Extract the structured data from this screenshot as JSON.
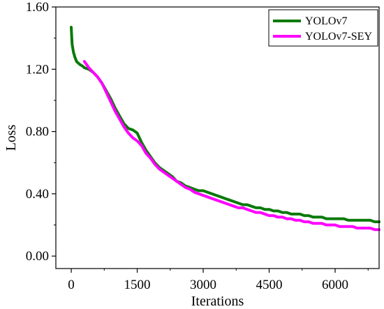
{
  "chart_data": {
    "type": "line",
    "xlabel": "Iterations",
    "ylabel": "Loss",
    "xlim": [
      -350,
      7000
    ],
    "ylim": [
      -0.08,
      1.6
    ],
    "xticks": [
      0,
      1500,
      3000,
      4500,
      6000
    ],
    "xtick_labels": [
      "0",
      "1500",
      "3000",
      "4500",
      "6000"
    ],
    "yticks": [
      0.0,
      0.4,
      0.8,
      1.2,
      1.6
    ],
    "ytick_labels": [
      "0.00",
      "0.40",
      "0.80",
      "1.20",
      "1.60"
    ],
    "legend_position": "top-right",
    "grid": false,
    "series": [
      {
        "name": "YOLOv7",
        "color": "#0a7a0a",
        "x": [
          0,
          20,
          50,
          80,
          120,
          160,
          200,
          260,
          300,
          400,
          500,
          600,
          700,
          800,
          900,
          1000,
          1100,
          1200,
          1300,
          1400,
          1500,
          1600,
          1700,
          1800,
          1900,
          2000,
          2100,
          2200,
          2300,
          2400,
          2500,
          2600,
          2700,
          2800,
          2900,
          3000,
          3100,
          3200,
          3300,
          3400,
          3500,
          3600,
          3700,
          3800,
          3900,
          4000,
          4100,
          4200,
          4300,
          4400,
          4500,
          4600,
          4700,
          4800,
          4900,
          5000,
          5100,
          5200,
          5300,
          5400,
          5500,
          5600,
          5700,
          5800,
          5900,
          6000,
          6100,
          6200,
          6300,
          6400,
          6500,
          6600,
          6700,
          6800,
          6900,
          7000
        ],
        "y": [
          1.47,
          1.36,
          1.31,
          1.28,
          1.25,
          1.24,
          1.23,
          1.22,
          1.21,
          1.2,
          1.18,
          1.15,
          1.11,
          1.06,
          1.01,
          0.95,
          0.9,
          0.85,
          0.82,
          0.81,
          0.79,
          0.73,
          0.68,
          0.64,
          0.6,
          0.57,
          0.55,
          0.53,
          0.51,
          0.48,
          0.47,
          0.45,
          0.44,
          0.43,
          0.42,
          0.42,
          0.41,
          0.4,
          0.39,
          0.38,
          0.37,
          0.36,
          0.35,
          0.34,
          0.33,
          0.33,
          0.32,
          0.31,
          0.31,
          0.3,
          0.3,
          0.29,
          0.29,
          0.28,
          0.28,
          0.27,
          0.27,
          0.27,
          0.26,
          0.26,
          0.25,
          0.25,
          0.25,
          0.24,
          0.24,
          0.24,
          0.24,
          0.24,
          0.23,
          0.23,
          0.23,
          0.23,
          0.23,
          0.23,
          0.22,
          0.22
        ]
      },
      {
        "name": "YOLOv7-SEY",
        "color": "#ff00ff",
        "x": [
          300,
          400,
          500,
          600,
          700,
          800,
          900,
          1000,
          1100,
          1200,
          1300,
          1400,
          1500,
          1600,
          1700,
          1800,
          1900,
          2000,
          2100,
          2200,
          2300,
          2400,
          2500,
          2600,
          2700,
          2800,
          2900,
          3000,
          3100,
          3200,
          3300,
          3400,
          3500,
          3600,
          3700,
          3800,
          3900,
          4000,
          4100,
          4200,
          4300,
          4400,
          4500,
          4600,
          4700,
          4800,
          4900,
          5000,
          5100,
          5200,
          5300,
          5400,
          5500,
          5600,
          5700,
          5800,
          5900,
          6000,
          6100,
          6200,
          6300,
          6400,
          6500,
          6600,
          6700,
          6800,
          6900,
          7000
        ],
        "y": [
          1.25,
          1.21,
          1.18,
          1.15,
          1.11,
          1.05,
          0.99,
          0.93,
          0.88,
          0.83,
          0.79,
          0.76,
          0.74,
          0.71,
          0.66,
          0.63,
          0.59,
          0.56,
          0.54,
          0.52,
          0.5,
          0.48,
          0.46,
          0.44,
          0.43,
          0.41,
          0.4,
          0.39,
          0.38,
          0.37,
          0.36,
          0.35,
          0.34,
          0.33,
          0.32,
          0.31,
          0.31,
          0.3,
          0.29,
          0.28,
          0.28,
          0.27,
          0.26,
          0.26,
          0.25,
          0.25,
          0.24,
          0.24,
          0.23,
          0.23,
          0.22,
          0.22,
          0.21,
          0.21,
          0.21,
          0.2,
          0.2,
          0.2,
          0.19,
          0.19,
          0.19,
          0.19,
          0.18,
          0.18,
          0.18,
          0.18,
          0.17,
          0.17
        ]
      }
    ]
  }
}
